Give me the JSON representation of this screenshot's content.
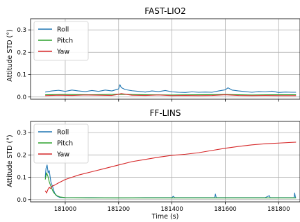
{
  "chart_data": [
    {
      "type": "line",
      "title": "FAST-LIO2",
      "xlabel": "",
      "ylabel": "Attitude STD (°)",
      "xlim": [
        180870,
        181880
      ],
      "ylim": [
        -0.01,
        0.35
      ],
      "xticks": [
        181000,
        181200,
        181400,
        181600,
        181800
      ],
      "yticks": [
        0.0,
        0.1,
        0.2,
        0.3
      ],
      "ytick_labels": [
        "0.0",
        "0.1",
        "0.2",
        "0.3"
      ],
      "grid": true,
      "legend": "top-left",
      "series": [
        {
          "name": "Roll",
          "color": "#1f77b4",
          "x": [
            180925,
            180950,
            180975,
            181000,
            181025,
            181050,
            181075,
            181100,
            181125,
            181150,
            181175,
            181200,
            181205,
            181210,
            181225,
            181250,
            181275,
            181300,
            181325,
            181350,
            181375,
            181400,
            181425,
            181450,
            181475,
            181500,
            181525,
            181550,
            181575,
            181600,
            181610,
            181625,
            181650,
            181675,
            181700,
            181725,
            181750,
            181775,
            181800,
            181825,
            181850,
            181865
          ],
          "y": [
            0.022,
            0.027,
            0.03,
            0.025,
            0.031,
            0.027,
            0.024,
            0.029,
            0.025,
            0.031,
            0.027,
            0.036,
            0.055,
            0.042,
            0.033,
            0.028,
            0.025,
            0.022,
            0.027,
            0.024,
            0.029,
            0.023,
            0.021,
            0.02,
            0.023,
            0.021,
            0.022,
            0.021,
            0.027,
            0.032,
            0.041,
            0.031,
            0.027,
            0.024,
            0.021,
            0.024,
            0.023,
            0.026,
            0.02,
            0.022,
            0.021,
            0.021
          ]
        },
        {
          "name": "Pitch",
          "color": "#2ca02c",
          "x": [
            180925,
            181000,
            181100,
            181200,
            181300,
            181400,
            181500,
            181600,
            181700,
            181800,
            181865
          ],
          "y": [
            0.01,
            0.011,
            0.01,
            0.012,
            0.01,
            0.009,
            0.01,
            0.011,
            0.009,
            0.01,
            0.01
          ]
        },
        {
          "name": "Yaw",
          "color": "#d62728",
          "x": [
            180925,
            180975,
            181025,
            181075,
            181125,
            181175,
            181200,
            181210,
            181250,
            181300,
            181350,
            181400,
            181450,
            181500,
            181550,
            181600,
            181650,
            181700,
            181750,
            181800,
            181865
          ],
          "y": [
            0.006,
            0.008,
            0.007,
            0.009,
            0.008,
            0.007,
            0.012,
            0.015,
            0.008,
            0.007,
            0.009,
            0.006,
            0.007,
            0.006,
            0.007,
            0.01,
            0.007,
            0.006,
            0.007,
            0.006,
            0.006
          ]
        }
      ]
    },
    {
      "type": "line",
      "title": "FF-LINS",
      "xlabel": "Time (s)",
      "ylabel": "Attitude STD (°)",
      "xlim": [
        180870,
        181880
      ],
      "ylim": [
        -0.01,
        0.35
      ],
      "xticks": [
        181000,
        181200,
        181400,
        181600,
        181800
      ],
      "xtick_labels": [
        "181000",
        "181200",
        "181400",
        "181600",
        "181800"
      ],
      "yticks": [
        0.0,
        0.1,
        0.2,
        0.3
      ],
      "ytick_labels": [
        "0.0",
        "0.1",
        "0.2",
        "0.3"
      ],
      "grid": true,
      "legend": "top-left",
      "series": [
        {
          "name": "Roll",
          "color": "#1f77b4",
          "x": [
            180925,
            180928,
            180932,
            180936,
            180940,
            180946,
            180952,
            180960,
            180970,
            180980,
            181000,
            181100,
            181200,
            181300,
            181400,
            181405,
            181410,
            181500,
            181560,
            181563,
            181566,
            181600,
            181750,
            181765,
            181768,
            181772,
            181800,
            181850,
            181858,
            181860,
            181863,
            181865
          ],
          "y": [
            0.1,
            0.14,
            0.155,
            0.12,
            0.13,
            0.08,
            0.06,
            0.03,
            0.015,
            0.01,
            0.009,
            0.009,
            0.008,
            0.009,
            0.009,
            0.015,
            0.009,
            0.009,
            0.009,
            0.025,
            0.009,
            0.009,
            0.009,
            0.018,
            0.009,
            0.009,
            0.009,
            0.009,
            0.009,
            0.03,
            0.009,
            0.009
          ]
        },
        {
          "name": "Pitch",
          "color": "#2ca02c",
          "x": [
            180925,
            180930,
            180935,
            180940,
            180946,
            180955,
            180965,
            180980,
            181000,
            181100,
            181200,
            181300,
            181400,
            181500,
            181600,
            181700,
            181800,
            181865
          ],
          "y": [
            0.09,
            0.12,
            0.105,
            0.08,
            0.06,
            0.035,
            0.02,
            0.012,
            0.009,
            0.008,
            0.008,
            0.008,
            0.008,
            0.008,
            0.008,
            0.008,
            0.008,
            0.008
          ]
        },
        {
          "name": "Yaw",
          "color": "#d62728",
          "x": [
            180925,
            180930,
            180935,
            180940,
            180945,
            180950,
            180960,
            180975,
            181000,
            181050,
            181100,
            181150,
            181200,
            181250,
            181300,
            181350,
            181400,
            181450,
            181500,
            181550,
            181600,
            181650,
            181700,
            181750,
            181800,
            181865
          ],
          "y": [
            0.04,
            0.03,
            0.045,
            0.055,
            0.05,
            0.06,
            0.065,
            0.075,
            0.09,
            0.11,
            0.125,
            0.14,
            0.155,
            0.17,
            0.18,
            0.19,
            0.198,
            0.203,
            0.21,
            0.22,
            0.23,
            0.238,
            0.245,
            0.25,
            0.253,
            0.257
          ]
        }
      ]
    }
  ]
}
